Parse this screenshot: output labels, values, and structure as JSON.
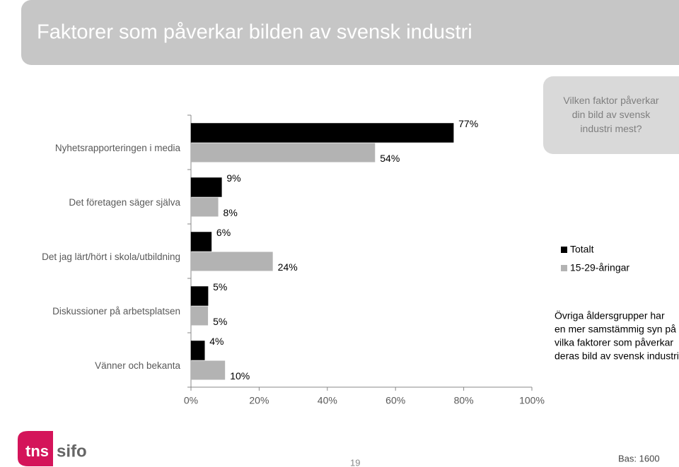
{
  "chart_data": {
    "type": "barh",
    "title": "Faktorer som påverkar bilden av svensk industri",
    "question": "Vilken faktor påverkar din bild av svensk industri mest?",
    "categories": [
      "Nyhetsrapporteringen i media",
      "Det företagen säger själva",
      "Det jag lärt/hört i skola/utbildning",
      "Diskussioner på arbetsplatsen",
      "Vänner och bekanta"
    ],
    "series": [
      {
        "name": "Totalt",
        "color": "#000000",
        "values": [
          77,
          9,
          6,
          5,
          4
        ],
        "value_labels": [
          "77%",
          "9%",
          "6%",
          "5%",
          "4%"
        ]
      },
      {
        "name": "15-29-åringar",
        "color": "#b3b3b3",
        "values": [
          54,
          8,
          24,
          5,
          10
        ],
        "value_labels": [
          "54%",
          "8%",
          "24%",
          "5%",
          "10%"
        ]
      }
    ],
    "xlim": [
      0,
      100
    ],
    "xticks": [
      {
        "value": 0,
        "label": "0%"
      },
      {
        "value": 20,
        "label": "20%"
      },
      {
        "value": 40,
        "label": "40%"
      },
      {
        "value": 60,
        "label": "60%"
      },
      {
        "value": 80,
        "label": "80%"
      },
      {
        "value": 100,
        "label": "100%"
      }
    ],
    "annotation": [
      "Övriga åldersgrupper har",
      "en mer samstämmig syn på",
      "vilka faktorer som påverkar",
      "deras bild av svensk industri."
    ]
  },
  "footer": {
    "logo": [
      "tns",
      "sifo"
    ],
    "page": "19",
    "base": "Bas: 1600"
  }
}
